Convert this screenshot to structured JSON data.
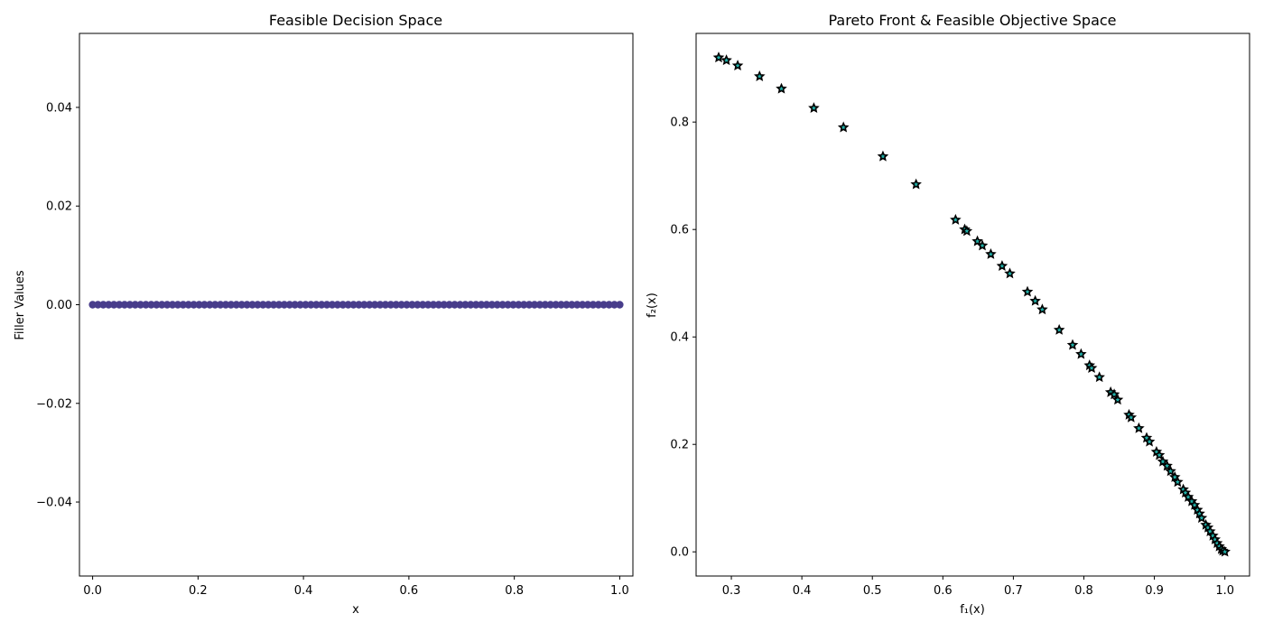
{
  "chart_data": [
    {
      "type": "scatter",
      "title": "Feasible Decision Space",
      "xlabel": "x",
      "ylabel": "Filler Values",
      "xlim": [
        -0.025,
        1.025
      ],
      "ylim": [
        -0.055,
        0.055
      ],
      "xticks": [
        0.0,
        0.2,
        0.4,
        0.6,
        0.8,
        1.0
      ],
      "xtick_labels": [
        "0.0",
        "0.2",
        "0.4",
        "0.6",
        "0.8",
        "1.0"
      ],
      "yticks": [
        0.04,
        0.02,
        0.0,
        -0.02,
        -0.04
      ],
      "ytick_labels": [
        "0.04",
        "0.02",
        "0.00",
        "−0.02",
        "−0.04"
      ],
      "grid": false,
      "marker": "circle",
      "color": "#483d8b",
      "series": [
        {
          "x_range": [
            0.0,
            1.0
          ],
          "count": 100,
          "y_constant": 0.0
        }
      ]
    },
    {
      "type": "scatter",
      "title": "Pareto Front & Feasible Objective Space",
      "xlabel": "f₁(x)",
      "ylabel": "f₂(x)",
      "xlim": [
        0.25,
        1.035
      ],
      "ylim": [
        -0.045,
        0.965
      ],
      "xticks": [
        0.3,
        0.4,
        0.5,
        0.6,
        0.7,
        0.8,
        0.9,
        1.0
      ],
      "xtick_labels": [
        "0.3",
        "0.4",
        "0.5",
        "0.6",
        "0.7",
        "0.8",
        "0.9",
        "1.0"
      ],
      "yticks": [
        0.0,
        0.2,
        0.4,
        0.6,
        0.8
      ],
      "ytick_labels": [
        "0.0",
        "0.2",
        "0.4",
        "0.6",
        "0.8"
      ],
      "grid": false,
      "marker": "star",
      "colors": {
        "edge": "#000000",
        "fill": "#20b2aa"
      },
      "series": [
        {
          "x": [
            0.282,
            0.293,
            0.309,
            0.34,
            0.371,
            0.417,
            0.459,
            0.515,
            0.562,
            0.618,
            0.631,
            0.634,
            0.649,
            0.656,
            0.668,
            0.684,
            0.695,
            0.72,
            0.731,
            0.741,
            0.765,
            0.784,
            0.796,
            0.808,
            0.811,
            0.822,
            0.838,
            0.843,
            0.848,
            0.864,
            0.867,
            0.878,
            0.889,
            0.893,
            0.903,
            0.907,
            0.912,
            0.918,
            0.923,
            0.929,
            0.933,
            0.941,
            0.944,
            0.948,
            0.953,
            0.957,
            0.961,
            0.964,
            0.967,
            0.973,
            0.976,
            0.979,
            0.983,
            0.986,
            0.989,
            0.992,
            0.995,
            0.997,
            1.0
          ],
          "y": [
            0.92,
            0.915,
            0.905,
            0.885,
            0.862,
            0.826,
            0.79,
            0.736,
            0.684,
            0.618,
            0.6,
            0.597,
            0.578,
            0.57,
            0.554,
            0.532,
            0.518,
            0.484,
            0.467,
            0.451,
            0.413,
            0.385,
            0.368,
            0.347,
            0.342,
            0.325,
            0.297,
            0.293,
            0.283,
            0.255,
            0.25,
            0.23,
            0.212,
            0.205,
            0.186,
            0.18,
            0.168,
            0.16,
            0.15,
            0.139,
            0.13,
            0.116,
            0.11,
            0.102,
            0.094,
            0.087,
            0.078,
            0.071,
            0.063,
            0.05,
            0.045,
            0.038,
            0.03,
            0.023,
            0.016,
            0.01,
            0.005,
            0.002,
            0.0
          ]
        }
      ]
    }
  ]
}
